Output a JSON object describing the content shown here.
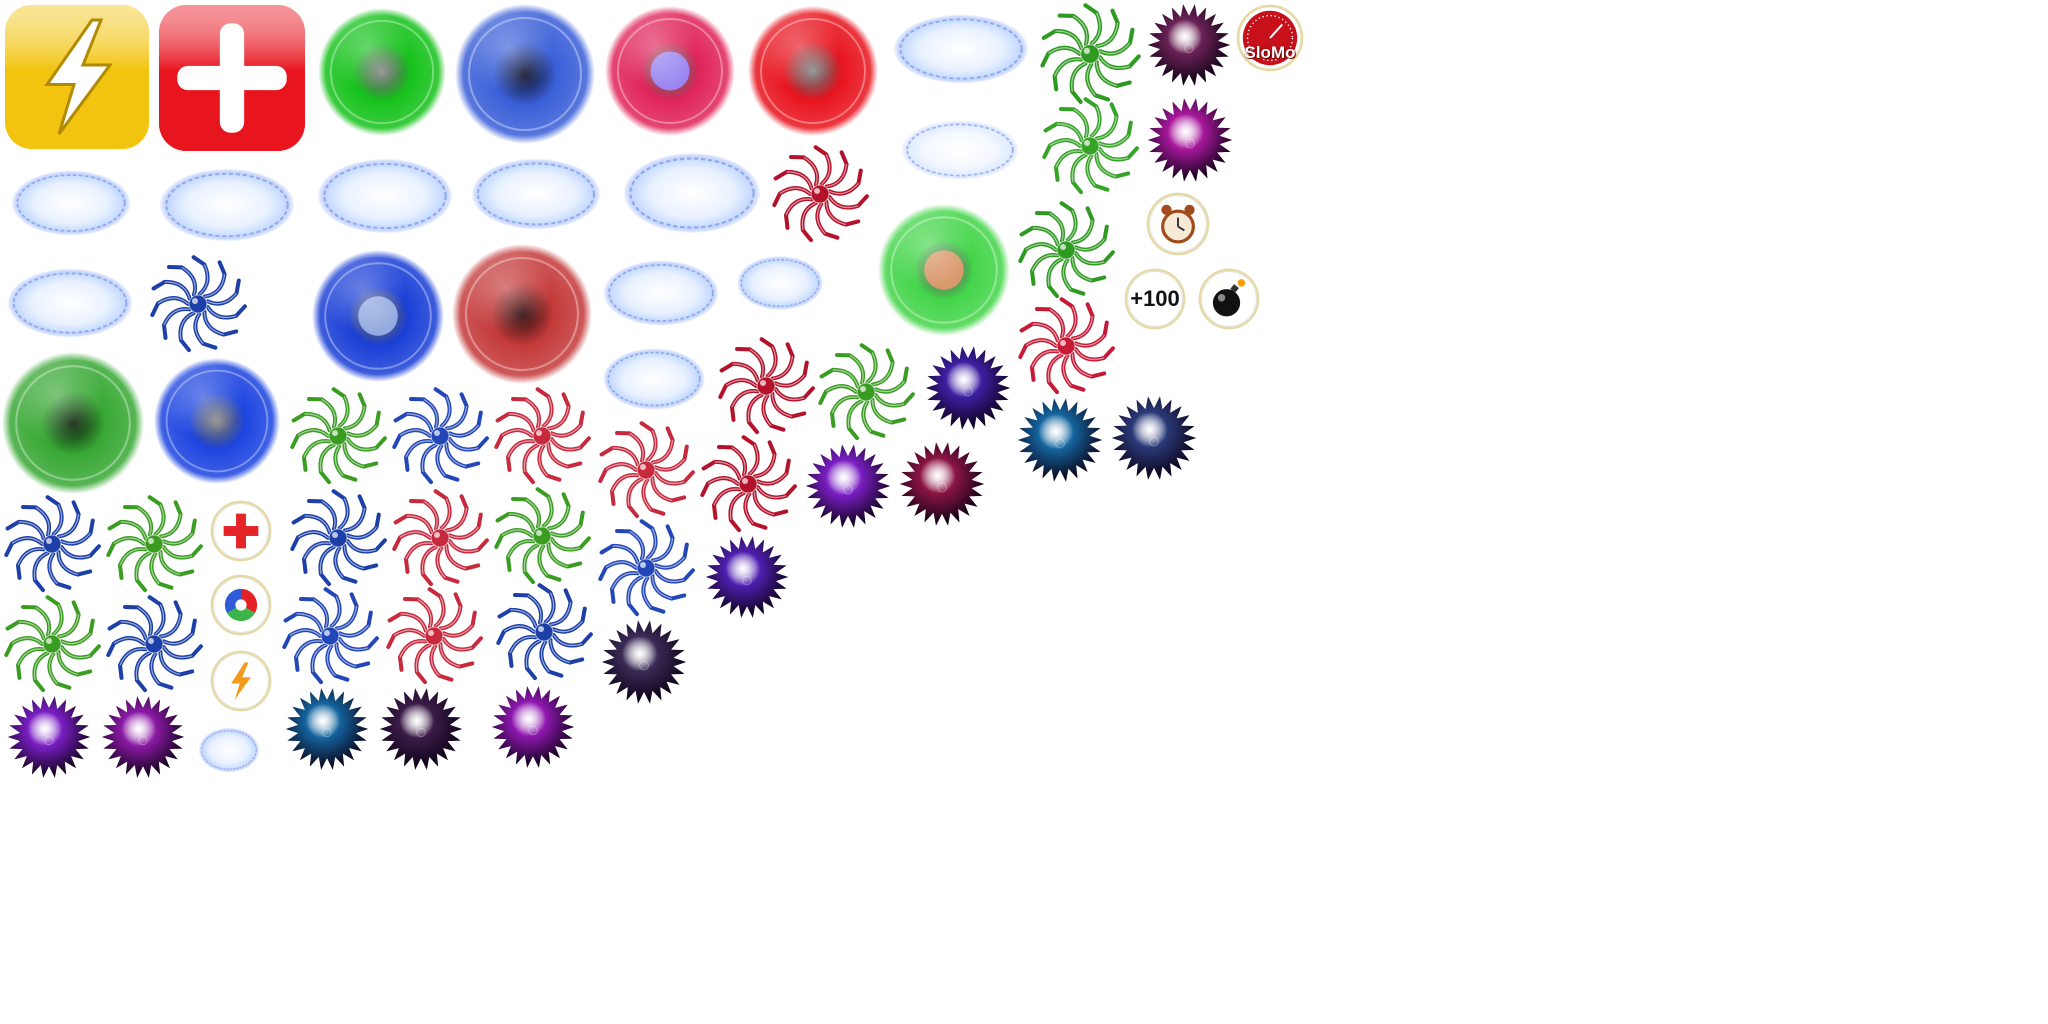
{
  "sheet": {
    "powerup_labels": {
      "score_bonus": "+100",
      "slowmo": "SloMo"
    },
    "palette": {
      "yellow": "#f2c40f",
      "red": "#e8141e",
      "green": "#16c21c",
      "blue": "#1a3fd6",
      "navy": "#0a1a6e",
      "crimson": "#b00d1c",
      "purple": "#7a1fc4",
      "magenta": "#a8189c",
      "plum": "#3b1c48",
      "teal": "#14649e",
      "cloud": "#c8dcff"
    },
    "icons": [
      "lightning-icon",
      "plus-icon",
      "alarm-clock-icon",
      "bomb-icon",
      "slowmo-gauge-icon",
      "rgb-wheel-icon",
      "health-cross-icon"
    ]
  }
}
